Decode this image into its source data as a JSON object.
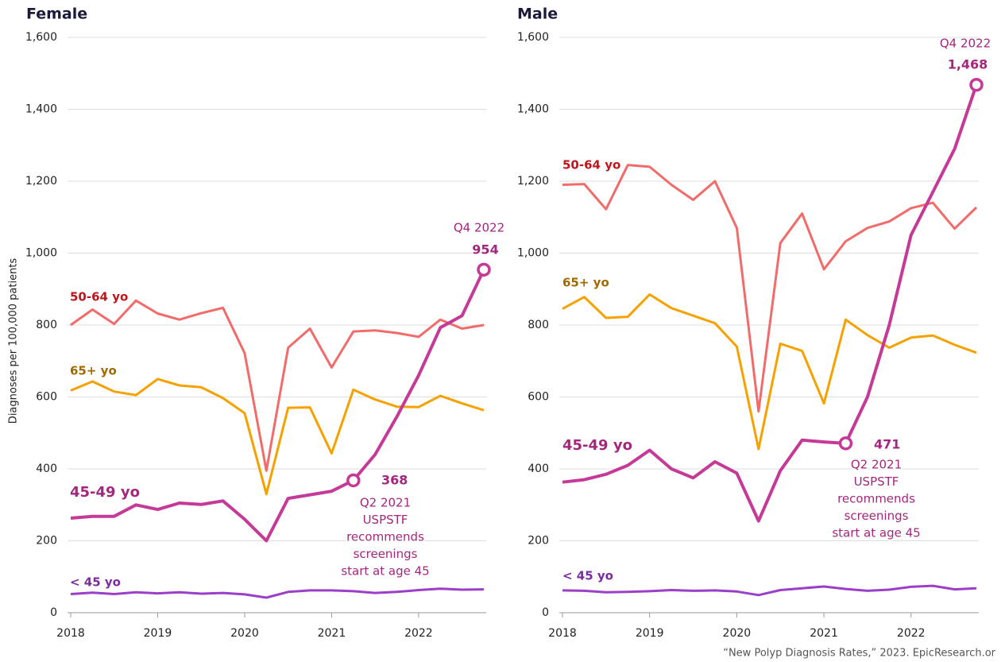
{
  "chart_data": [
    {
      "type": "line",
      "title": "Female",
      "y_label": "Diagnoses per 100,000 patients",
      "x": [
        2018,
        2018.25,
        2018.5,
        2018.75,
        2019,
        2019.25,
        2019.5,
        2019.75,
        2020,
        2020.25,
        2020.5,
        2020.75,
        2021,
        2021.25,
        2021.5,
        2021.75,
        2022,
        2022.25,
        2022.5,
        2022.75
      ],
      "xlim": [
        2018,
        2022.75
      ],
      "xticks": [
        2018,
        2019,
        2020,
        2021,
        2022
      ],
      "ylim": [
        0,
        1600
      ],
      "yticks": [
        0,
        200,
        400,
        600,
        800,
        {
          "value": 1000,
          "label": "1,000"
        },
        {
          "value": 1200,
          "label": "1,200"
        },
        {
          "value": 1400,
          "label": "1,400"
        },
        {
          "value": 1600,
          "label": "1,600"
        }
      ],
      "grid": true,
      "series": [
        {
          "name": "50-64 yo",
          "color": "#f26b6b",
          "label_color": "#c0161b",
          "values": [
            800,
            843,
            803,
            868,
            832,
            815,
            833,
            848,
            722,
            395,
            737,
            790,
            682,
            782,
            785,
            778,
            767,
            815,
            790,
            800
          ]
        },
        {
          "name": "65+ yo",
          "color": "#f5a100",
          "label_color": "#a06a00",
          "values": [
            618,
            643,
            615,
            605,
            650,
            632,
            627,
            597,
            555,
            330,
            570,
            571,
            443,
            620,
            593,
            573,
            572,
            603,
            582,
            563
          ]
        },
        {
          "name": "45-49 yo",
          "color": "#c63a97",
          "label_color": "#a3287d",
          "values": [
            263,
            268,
            268,
            300,
            287,
            305,
            301,
            311,
            260,
            200,
            318,
            328,
            338,
            368,
            440,
            545,
            660,
            793,
            826,
            954
          ]
        },
        {
          "name": "< 45 yo",
          "color": "#9b3fc9",
          "label_color": "#7a2c9f",
          "values": [
            52,
            56,
            52,
            57,
            54,
            57,
            53,
            55,
            51,
            42,
            58,
            62,
            62,
            60,
            55,
            58,
            63,
            67,
            64,
            65
          ]
        }
      ],
      "annotations": {
        "event": "Q2 2021",
        "event_note": [
          "USPSTF",
          "recommends",
          "screenings",
          "start at age 45"
        ],
        "final": "Q4 2022"
      }
    },
    {
      "type": "line",
      "title": "Male",
      "x": [
        2018,
        2018.25,
        2018.5,
        2018.75,
        2019,
        2019.25,
        2019.5,
        2019.75,
        2020,
        2020.25,
        2020.5,
        2020.75,
        2021,
        2021.25,
        2021.5,
        2021.75,
        2022,
        2022.25,
        2022.5,
        2022.75
      ],
      "xlim": [
        2018,
        2022.75
      ],
      "xticks": [
        2018,
        2019,
        2020,
        2021,
        2022
      ],
      "ylim": [
        0,
        1600
      ],
      "yticks": [
        0,
        200,
        400,
        600,
        800,
        {
          "value": 1000,
          "label": "1,000"
        },
        {
          "value": 1200,
          "label": "1,200"
        },
        {
          "value": 1400,
          "label": "1,400"
        },
        {
          "value": 1600,
          "label": "1,600"
        }
      ],
      "grid": true,
      "series": [
        {
          "name": "50-64 yo",
          "color": "#f26b6b",
          "label_color": "#c0161b",
          "values": [
            1190,
            1192,
            1122,
            1245,
            1240,
            1190,
            1148,
            1200,
            1070,
            560,
            1028,
            1110,
            955,
            1033,
            1070,
            1088,
            1125,
            1140,
            1068,
            1127
          ]
        },
        {
          "name": "65+ yo",
          "color": "#f5a100",
          "label_color": "#a06a00",
          "values": [
            845,
            878,
            820,
            823,
            885,
            847,
            826,
            805,
            740,
            455,
            748,
            728,
            582,
            815,
            772,
            737,
            765,
            771,
            745,
            723
          ]
        },
        {
          "name": "45-49 yo",
          "color": "#c63a97",
          "label_color": "#a3287d",
          "values": [
            363,
            370,
            385,
            410,
            452,
            400,
            375,
            420,
            388,
            255,
            395,
            480,
            475,
            471,
            600,
            800,
            1050,
            1170,
            1290,
            1468
          ],
          "value_labels": [
            null,
            null,
            null,
            null,
            null,
            null,
            null,
            null,
            null,
            null,
            null,
            null,
            null,
            null,
            null,
            null,
            null,
            null,
            null,
            "1,468"
          ]
        },
        {
          "name": "< 45 yo",
          "color": "#9b3fc9",
          "label_color": "#7a2c9f",
          "values": [
            62,
            61,
            57,
            58,
            60,
            63,
            61,
            62,
            59,
            49,
            63,
            68,
            73,
            66,
            61,
            64,
            72,
            75,
            65,
            68
          ]
        }
      ],
      "annotations": {
        "event": "Q2 2021",
        "event_note": [
          "USPSTF",
          "recommends",
          "screenings",
          "start at age 45"
        ],
        "final": "Q4 2022"
      }
    }
  ],
  "source": "“New Polyp Diagnosis Rates,” 2023. EpicResearch.or"
}
